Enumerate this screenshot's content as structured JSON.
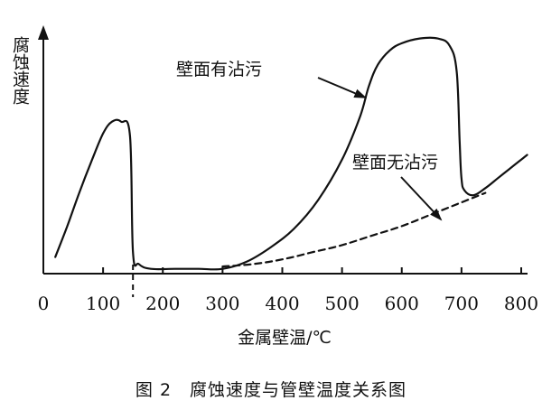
{
  "chart_data": {
    "type": "line",
    "caption": "图 2　腐蚀速度与管壁温度关系图",
    "xlabel": "金属壁温/℃",
    "ylabel": "腐蚀速度",
    "xlim": [
      0,
      800
    ],
    "xticks": [
      0,
      100,
      200,
      300,
      400,
      500,
      600,
      700,
      800
    ],
    "y_numeric_ticks": false,
    "grid": false,
    "series": [
      {
        "name": "壁面有沾污",
        "style": "solid",
        "x": [
          20,
          40,
          60,
          80,
          100,
          115,
          130,
          145,
          150,
          160,
          180,
          220,
          260,
          300,
          340,
          380,
          420,
          460,
          500,
          530,
          545,
          560,
          580,
          600,
          630,
          660,
          680,
          692,
          697,
          700,
          705,
          720,
          740,
          760,
          780,
          800,
          810
        ],
        "y": [
          0.07,
          0.2,
          0.34,
          0.47,
          0.59,
          0.64,
          0.64,
          0.58,
          0.09,
          0.04,
          0.02,
          0.02,
          0.02,
          0.02,
          0.05,
          0.11,
          0.19,
          0.31,
          0.48,
          0.66,
          0.79,
          0.88,
          0.94,
          0.97,
          0.99,
          0.99,
          0.96,
          0.85,
          0.55,
          0.4,
          0.35,
          0.33,
          0.36,
          0.4,
          0.44,
          0.48,
          0.5
        ]
      },
      {
        "name": "壁面无沾污",
        "style": "dashed",
        "x": [
          300,
          350,
          400,
          450,
          500,
          550,
          600,
          650,
          700,
          740
        ],
        "y": [
          0.03,
          0.04,
          0.06,
          0.09,
          0.12,
          0.16,
          0.2,
          0.25,
          0.3,
          0.34
        ]
      }
    ],
    "reference_line": {
      "x": 150,
      "style": "dashed"
    },
    "annotations": [
      {
        "text": "壁面有沾污",
        "target_series": "壁面有沾污"
      },
      {
        "text": "壁面无沾污",
        "target_series": "壁面无沾污"
      }
    ]
  }
}
